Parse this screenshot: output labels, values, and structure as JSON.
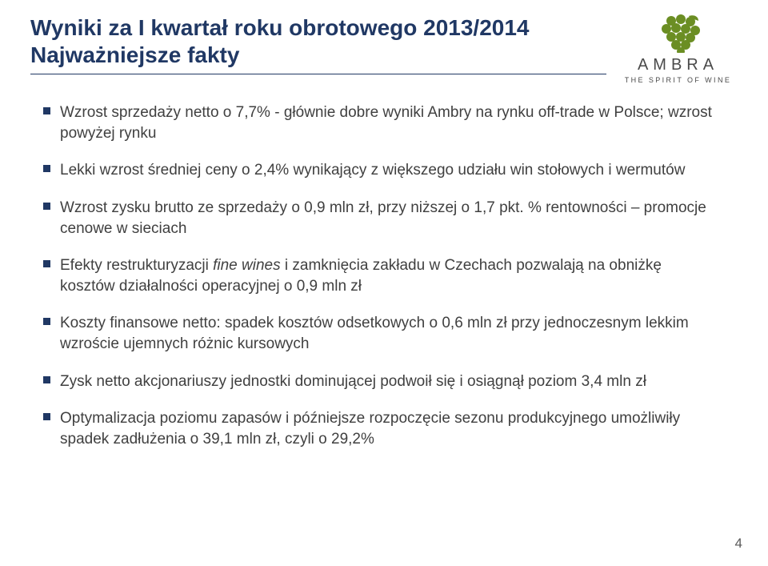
{
  "colors": {
    "title": "#203864",
    "bullet_square": "#203864",
    "rule": "#203864",
    "body_text": "#404040",
    "logo_green": "#6b8e23",
    "logo_text": "#4a4a4a",
    "page_num": "#595959",
    "background": "#ffffff"
  },
  "title": {
    "line1": "Wyniki za I kwartał roku obrotowego 2013/2014",
    "line2": "Najważniejsze fakty",
    "fontsize": 28
  },
  "logo": {
    "brand": "AMBRA",
    "tagline": "THE SPIRIT OF WINE",
    "brand_fontsize": 20,
    "tag_fontsize": 9
  },
  "bullets": [
    {
      "segments": [
        {
          "text": "Wzrost sprzedaży netto o 7,7% - głównie dobre wyniki Ambry na rynku off-trade w Polsce; wzrost powyżej rynku"
        }
      ]
    },
    {
      "segments": [
        {
          "text": "Lekki wzrost średniej ceny o 2,4% wynikający z większego udziału win stołowych i wermutów"
        }
      ]
    },
    {
      "segments": [
        {
          "text": "Wzrost zysku brutto ze sprzedaży o 0,9 mln zł, przy niższej o 1,7 pkt. % rentowności – promocje cenowe w sieciach"
        }
      ]
    },
    {
      "segments": [
        {
          "text": "Efekty restrukturyzacji "
        },
        {
          "text": "fine wines",
          "italic": true
        },
        {
          "text": " i zamknięcia zakładu w Czechach pozwalają na obniżkę kosztów działalności operacyjnej o 0,9 mln zł"
        }
      ]
    },
    {
      "segments": [
        {
          "text": "Koszty finansowe netto: spadek kosztów odsetkowych o 0,6 mln zł przy jednoczesnym lekkim wzroście ujemnych różnic kursowych"
        }
      ]
    },
    {
      "segments": [
        {
          "text": "Zysk netto akcjonariuszy jednostki dominującej podwoił się i osiągnął poziom 3,4 mln zł"
        }
      ]
    },
    {
      "segments": [
        {
          "text": "Optymalizacja poziomu zapasów i późniejsze rozpoczęcie sezonu produkcyjnego umożliwiły spadek zadłużenia o 39,1 mln zł, czyli o 29,2%"
        }
      ]
    }
  ],
  "page_number": "4",
  "typography": {
    "body_fontsize": 19,
    "line_height": 1.35
  }
}
